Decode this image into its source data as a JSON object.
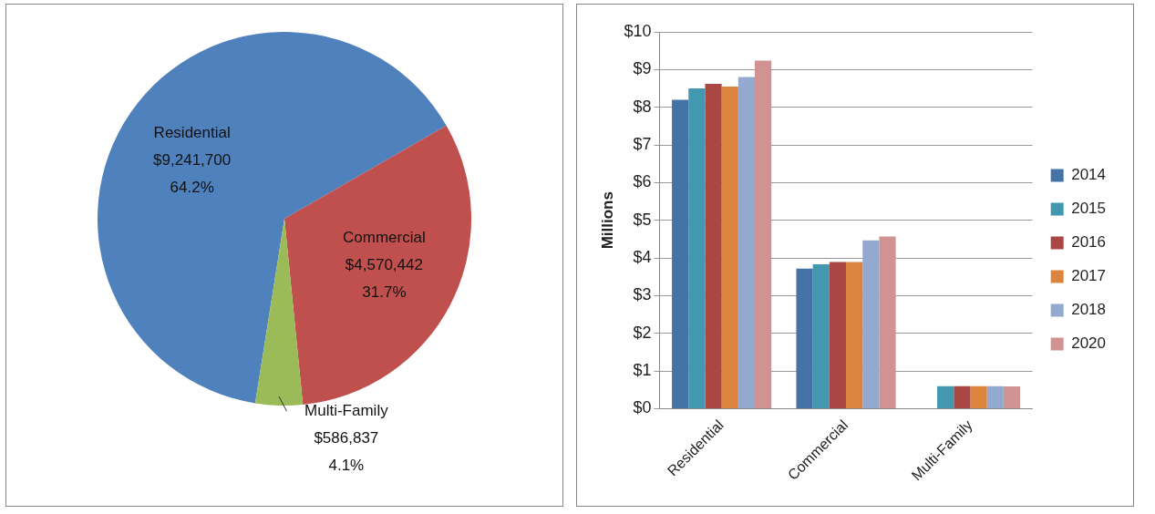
{
  "chart_data": [
    {
      "type": "pie",
      "categories": [
        "Residential",
        "Commercial",
        "Multi-Family"
      ],
      "values": [
        9241700,
        4570442,
        586837
      ],
      "colors": [
        "#4f81bd",
        "#c0504d",
        "#9bbb59"
      ],
      "value_labels": [
        "$9,241,700\n64.2%",
        "$4,570,442\n31.7%",
        "$586,837\n4.1%"
      ],
      "legend": false
    },
    {
      "type": "bar",
      "categories": [
        "Residential",
        "Commercial",
        "Multi-Family"
      ],
      "ylabel": "Millions",
      "series": [
        {
          "name": "2014",
          "color": "#4572a7",
          "values": [
            8.2,
            3.72,
            null
          ]
        },
        {
          "name": "2015",
          "color": "#4198af",
          "values": [
            8.5,
            3.83,
            0.6
          ]
        },
        {
          "name": "2016",
          "color": "#aa4643",
          "values": [
            8.62,
            3.89,
            0.6
          ]
        },
        {
          "name": "2017",
          "color": "#db843d",
          "values": [
            8.55,
            3.89,
            0.6
          ]
        },
        {
          "name": "2018",
          "color": "#93a9cf",
          "values": [
            8.8,
            4.47,
            0.6
          ]
        },
        {
          "name": "2020",
          "color": "#d19392",
          "values": [
            9.24,
            4.57,
            0.59
          ]
        }
      ],
      "ylim": [
        0,
        10
      ],
      "yticks": [
        {
          "value": 0,
          "label": "$0"
        },
        {
          "value": 1,
          "label": "$1"
        },
        {
          "value": 2,
          "label": "$2"
        },
        {
          "value": 3,
          "label": "$3"
        },
        {
          "value": 4,
          "label": "$4"
        },
        {
          "value": 5,
          "label": "$5"
        },
        {
          "value": 6,
          "label": "$6"
        },
        {
          "value": 7,
          "label": "$7"
        },
        {
          "value": 8,
          "label": "$8"
        },
        {
          "value": 9,
          "label": "$9"
        },
        {
          "value": 10,
          "label": "$10"
        }
      ],
      "grid": "y",
      "legend": "right"
    }
  ]
}
